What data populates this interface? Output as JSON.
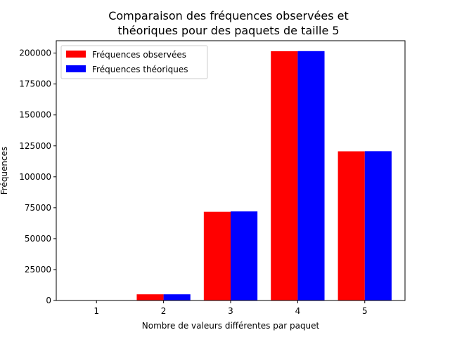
{
  "chart_data": {
    "type": "bar",
    "title": [
      "Comparaison des fréquences observées et",
      "théoriques pour des paquets de taille 5"
    ],
    "xlabel": "Nombre de valeurs différentes par paquet",
    "ylabel": "Fréquences",
    "categories": [
      "1",
      "2",
      "3",
      "4",
      "5"
    ],
    "series": [
      {
        "name": "Fréquences observées",
        "color": "#ff0000",
        "values": [
          0,
          5000,
          71700,
          201500,
          120600
        ]
      },
      {
        "name": "Fréquences théoriques",
        "color": "#0000ff",
        "values": [
          0,
          5000,
          72000,
          201600,
          120700
        ]
      }
    ],
    "ylim": [
      0,
      210000
    ],
    "yticks": [
      0,
      25000,
      50000,
      75000,
      100000,
      125000,
      150000,
      175000,
      200000
    ],
    "grid": false,
    "legend_position": "top-left"
  }
}
